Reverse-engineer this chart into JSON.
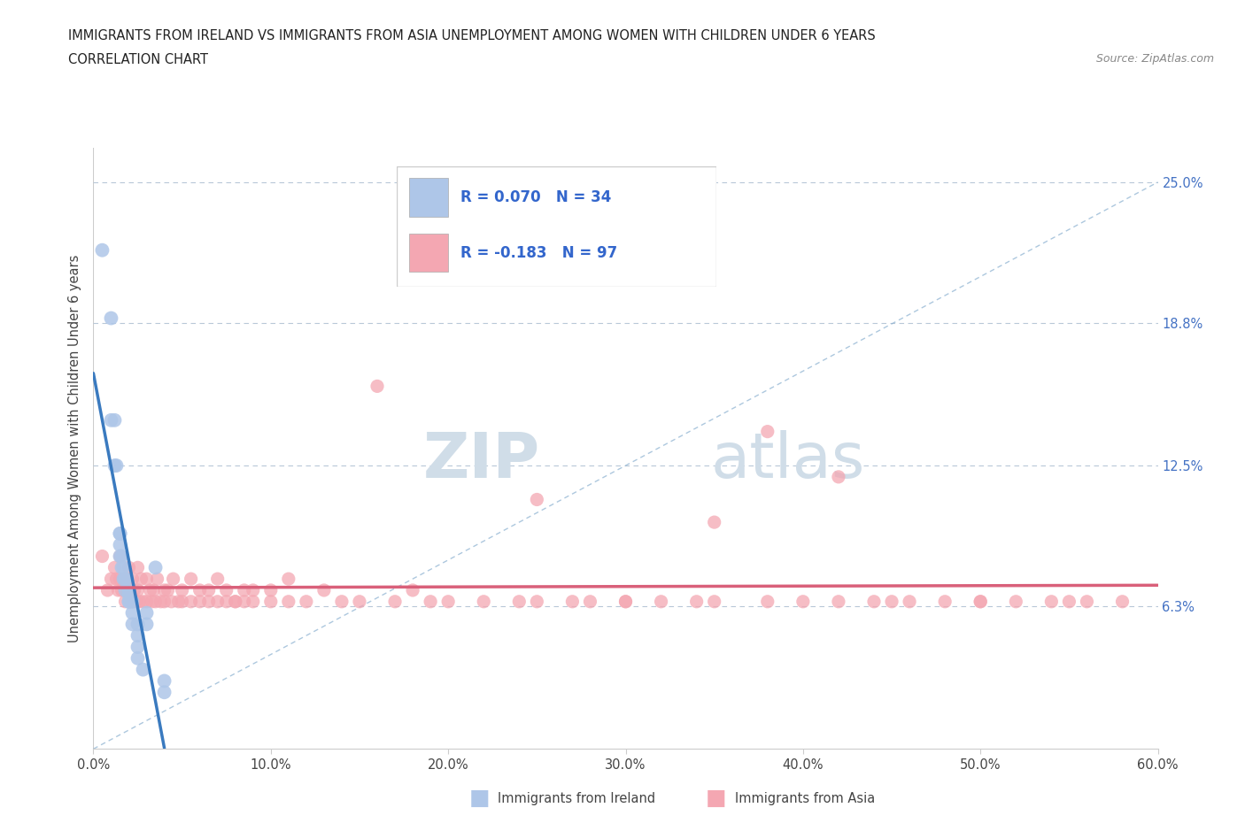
{
  "title_line1": "IMMIGRANTS FROM IRELAND VS IMMIGRANTS FROM ASIA UNEMPLOYMENT AMONG WOMEN WITH CHILDREN UNDER 6 YEARS",
  "title_line2": "CORRELATION CHART",
  "source": "Source: ZipAtlas.com",
  "ylabel": "Unemployment Among Women with Children Under 6 years",
  "xlabel_ticks": [
    "0.0%",
    "10.0%",
    "20.0%",
    "30.0%",
    "40.0%",
    "50.0%",
    "60.0%"
  ],
  "xlabel_vals": [
    0.0,
    0.1,
    0.2,
    0.3,
    0.4,
    0.5,
    0.6
  ],
  "ytick_labels": [
    "6.3%",
    "12.5%",
    "18.8%",
    "25.0%"
  ],
  "ytick_vals": [
    0.063,
    0.125,
    0.188,
    0.25
  ],
  "xlim": [
    0.0,
    0.6
  ],
  "ylim": [
    0.0,
    0.265
  ],
  "R_ireland": 0.07,
  "N_ireland": 34,
  "R_asia": -0.183,
  "N_asia": 97,
  "ireland_color": "#aec6e8",
  "asia_color": "#f4a7b2",
  "ireland_line_color": "#3a7abf",
  "asia_line_color": "#d9607a",
  "watermark_color": "#d0dde8",
  "ireland_scatter_x": [
    0.005,
    0.01,
    0.01,
    0.012,
    0.012,
    0.013,
    0.015,
    0.015,
    0.015,
    0.015,
    0.016,
    0.016,
    0.017,
    0.017,
    0.018,
    0.018,
    0.018,
    0.02,
    0.02,
    0.02,
    0.02,
    0.022,
    0.022,
    0.022,
    0.025,
    0.025,
    0.025,
    0.025,
    0.028,
    0.03,
    0.03,
    0.035,
    0.04,
    0.04
  ],
  "ireland_scatter_y": [
    0.22,
    0.19,
    0.145,
    0.145,
    0.125,
    0.125,
    0.095,
    0.095,
    0.09,
    0.085,
    0.085,
    0.08,
    0.08,
    0.075,
    0.075,
    0.075,
    0.07,
    0.07,
    0.068,
    0.065,
    0.065,
    0.065,
    0.06,
    0.055,
    0.055,
    0.05,
    0.045,
    0.04,
    0.035,
    0.055,
    0.06,
    0.08,
    0.03,
    0.025
  ],
  "asia_scatter_x": [
    0.005,
    0.008,
    0.01,
    0.012,
    0.013,
    0.014,
    0.015,
    0.015,
    0.016,
    0.017,
    0.018,
    0.018,
    0.019,
    0.02,
    0.02,
    0.022,
    0.022,
    0.023,
    0.024,
    0.025,
    0.025,
    0.026,
    0.027,
    0.028,
    0.03,
    0.03,
    0.032,
    0.033,
    0.034,
    0.035,
    0.036,
    0.038,
    0.04,
    0.04,
    0.042,
    0.044,
    0.045,
    0.048,
    0.05,
    0.05,
    0.055,
    0.055,
    0.06,
    0.06,
    0.065,
    0.065,
    0.07,
    0.07,
    0.075,
    0.075,
    0.08,
    0.08,
    0.085,
    0.085,
    0.09,
    0.09,
    0.1,
    0.1,
    0.11,
    0.11,
    0.12,
    0.13,
    0.14,
    0.15,
    0.16,
    0.17,
    0.18,
    0.19,
    0.2,
    0.22,
    0.24,
    0.25,
    0.27,
    0.28,
    0.3,
    0.32,
    0.34,
    0.35,
    0.38,
    0.4,
    0.42,
    0.44,
    0.46,
    0.48,
    0.5,
    0.52,
    0.54,
    0.56,
    0.58,
    0.38,
    0.42,
    0.25,
    0.3,
    0.35,
    0.45,
    0.5,
    0.55
  ],
  "asia_scatter_y": [
    0.085,
    0.07,
    0.075,
    0.08,
    0.075,
    0.07,
    0.085,
    0.075,
    0.07,
    0.075,
    0.07,
    0.065,
    0.075,
    0.08,
    0.07,
    0.075,
    0.065,
    0.07,
    0.065,
    0.08,
    0.07,
    0.065,
    0.075,
    0.065,
    0.075,
    0.065,
    0.07,
    0.065,
    0.07,
    0.065,
    0.075,
    0.065,
    0.07,
    0.065,
    0.07,
    0.065,
    0.075,
    0.065,
    0.07,
    0.065,
    0.075,
    0.065,
    0.07,
    0.065,
    0.07,
    0.065,
    0.075,
    0.065,
    0.065,
    0.07,
    0.065,
    0.065,
    0.07,
    0.065,
    0.065,
    0.07,
    0.07,
    0.065,
    0.075,
    0.065,
    0.065,
    0.07,
    0.065,
    0.065,
    0.16,
    0.065,
    0.07,
    0.065,
    0.065,
    0.065,
    0.065,
    0.11,
    0.065,
    0.065,
    0.065,
    0.065,
    0.065,
    0.1,
    0.065,
    0.065,
    0.12,
    0.065,
    0.065,
    0.065,
    0.065,
    0.065,
    0.065,
    0.065,
    0.065,
    0.14,
    0.065,
    0.065,
    0.065,
    0.065,
    0.065,
    0.065,
    0.065
  ]
}
